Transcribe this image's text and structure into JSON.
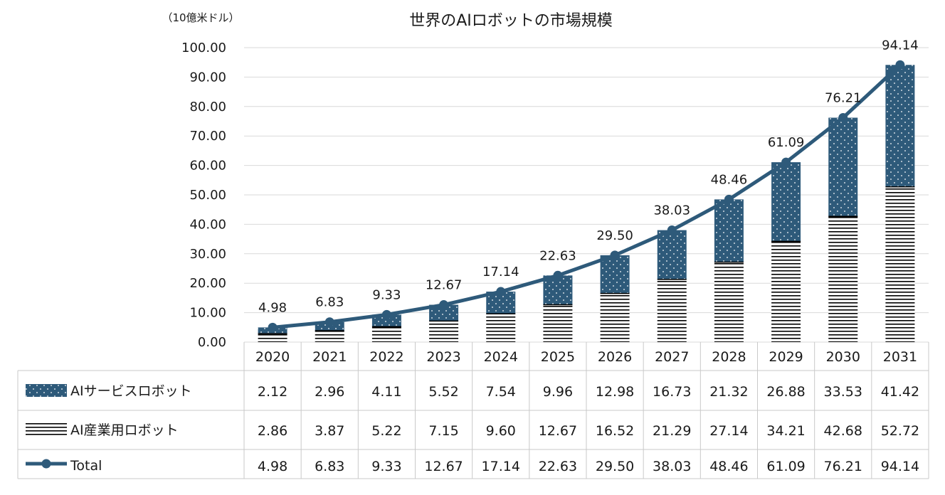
{
  "chart_data": {
    "type": "bar",
    "title": "世界のAIロボットの市場規模",
    "unit_label": "（10億米ドル）",
    "categories": [
      "2020",
      "2021",
      "2022",
      "2023",
      "2024",
      "2025",
      "2026",
      "2027",
      "2028",
      "2029",
      "2030",
      "2031"
    ],
    "ylim": [
      0,
      100
    ],
    "yticks": [
      "0.00",
      "10.00",
      "20.00",
      "30.00",
      "40.00",
      "50.00",
      "60.00",
      "70.00",
      "80.00",
      "90.00",
      "100.00"
    ],
    "grid": true,
    "legend": "data-table",
    "stacked": true,
    "series": [
      {
        "name": "AIサービスロボット",
        "kind": "bar",
        "pattern": "dots",
        "color": "#2e5a7a",
        "values": [
          2.12,
          2.96,
          4.11,
          5.52,
          7.54,
          9.96,
          12.98,
          16.73,
          21.32,
          26.88,
          33.53,
          41.42
        ],
        "labels": [
          "2.12",
          "2.96",
          "4.11",
          "5.52",
          "7.54",
          "9.96",
          "12.98",
          "16.73",
          "21.32",
          "26.88",
          "33.53",
          "41.42"
        ]
      },
      {
        "name": "AI産業用ロボット",
        "kind": "bar",
        "pattern": "horizontal-lines",
        "color": "#000000",
        "values": [
          2.86,
          3.87,
          5.22,
          7.15,
          9.6,
          12.67,
          16.52,
          21.29,
          27.14,
          34.21,
          42.68,
          52.72
        ],
        "labels": [
          "2.86",
          "3.87",
          "5.22",
          "7.15",
          "9.60",
          "12.67",
          "16.52",
          "21.29",
          "27.14",
          "34.21",
          "42.68",
          "52.72"
        ]
      },
      {
        "name": "Total",
        "kind": "line",
        "color": "#2e5a7a",
        "values": [
          4.98,
          6.83,
          9.33,
          12.67,
          17.14,
          22.63,
          29.5,
          38.03,
          48.46,
          61.09,
          76.21,
          94.14
        ],
        "labels": [
          "4.98",
          "6.83",
          "9.33",
          "12.67",
          "17.14",
          "22.63",
          "29.50",
          "38.03",
          "48.46",
          "61.09",
          "76.21",
          "94.14"
        ]
      }
    ]
  }
}
